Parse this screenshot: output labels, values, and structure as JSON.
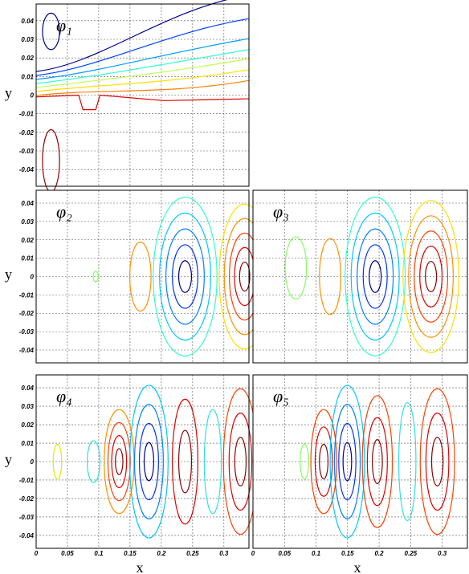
{
  "chart_data": [
    {
      "type": "contour",
      "title": "φ₁",
      "y_label": "y",
      "xlim": [
        0,
        0.34
      ],
      "ylim": [
        -0.049,
        0.049
      ],
      "xticks": [
        0,
        0.05,
        0.1,
        0.15,
        0.2,
        0.25,
        0.3
      ],
      "yticks": [
        -0.04,
        -0.03,
        -0.02,
        -0.01,
        0,
        0.01,
        0.02,
        0.03,
        0.04
      ],
      "show_xtick_labels": false,
      "show_ytick_labels": true,
      "grid": true
    },
    {
      "type": "contour",
      "title": "φ₂",
      "y_label": "y",
      "xlim": [
        0,
        0.34
      ],
      "ylim": [
        -0.047,
        0.047
      ],
      "xticks": [
        0,
        0.05,
        0.1,
        0.15,
        0.2,
        0.25,
        0.3
      ],
      "yticks": [
        -0.04,
        -0.03,
        -0.02,
        -0.01,
        0,
        0.01,
        0.02,
        0.03,
        0.04
      ],
      "show_xtick_labels": false,
      "show_ytick_labels": true,
      "grid": true
    },
    {
      "type": "contour",
      "title": "φ₃",
      "xlim": [
        0,
        0.34
      ],
      "ylim": [
        -0.047,
        0.047
      ],
      "xticks": [
        0,
        0.05,
        0.1,
        0.15,
        0.2,
        0.25,
        0.3
      ],
      "yticks": [
        -0.04,
        -0.03,
        -0.02,
        -0.01,
        0,
        0.01,
        0.02,
        0.03,
        0.04
      ],
      "show_xtick_labels": false,
      "show_ytick_labels": false,
      "grid": true
    },
    {
      "type": "contour",
      "title": "φ₄",
      "y_label": "y",
      "x_label": "x",
      "xlim": [
        0,
        0.34
      ],
      "ylim": [
        -0.047,
        0.047
      ],
      "xticks": [
        0,
        0.05,
        0.1,
        0.15,
        0.2,
        0.25,
        0.3
      ],
      "yticks": [
        -0.04,
        -0.03,
        -0.02,
        -0.01,
        0,
        0.01,
        0.02,
        0.03,
        0.04
      ],
      "show_xtick_labels": true,
      "show_ytick_labels": true,
      "grid": true
    },
    {
      "type": "contour",
      "title": "φ₅",
      "x_label": "x",
      "xlim": [
        0,
        0.34
      ],
      "ylim": [
        -0.047,
        0.047
      ],
      "xticks": [
        0,
        0.05,
        0.1,
        0.15,
        0.2,
        0.25,
        0.3
      ],
      "yticks": [
        -0.04,
        -0.03,
        -0.02,
        -0.01,
        0,
        0.01,
        0.02,
        0.03,
        0.04
      ],
      "show_xtick_labels": true,
      "show_ytick_labels": false,
      "grid": true
    }
  ]
}
